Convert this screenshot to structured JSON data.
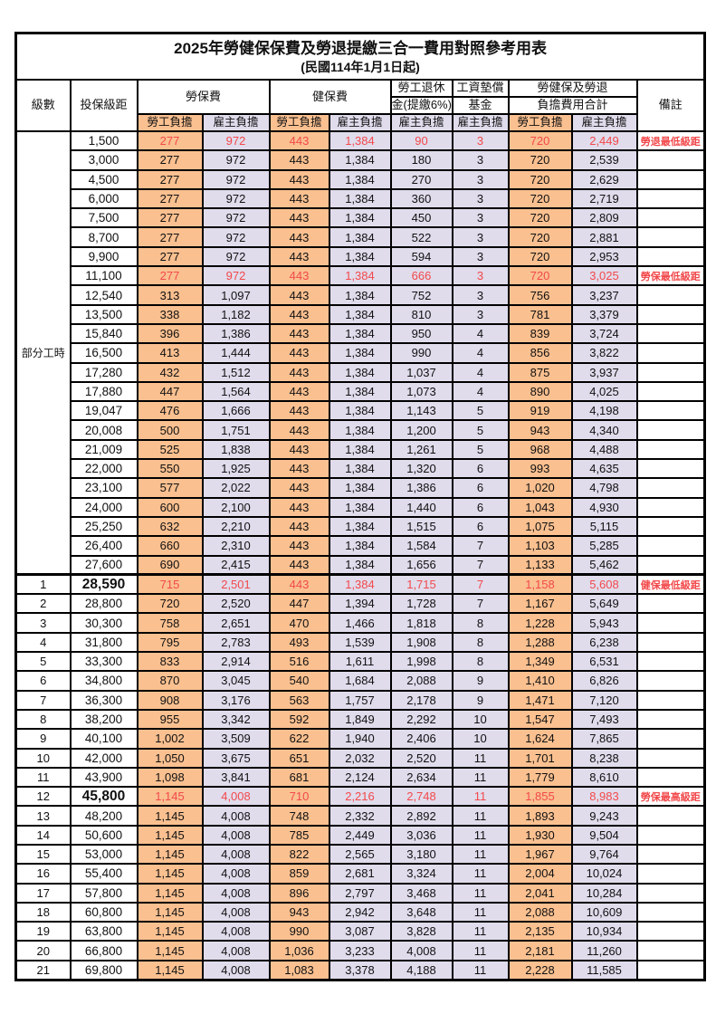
{
  "title": "2025年勞健保保費及勞退提繳三合一費用對照參考用表",
  "subtitle": "(民國114年1月1日起)",
  "colors": {
    "employee_bg": "#FAC090",
    "employer_bg": "#E0DCEC",
    "highlight": "#F2494B"
  },
  "header": {
    "level": "級數",
    "bracket": "投保級距",
    "labor_insurance": "勞保費",
    "health_insurance": "健保費",
    "pension_line1": "勞工退休",
    "pension_line2": "金(提繳6%)",
    "wage_fund_line1": "工資墊償",
    "wage_fund_line2": "基金",
    "total_line1": "勞健保及勞退",
    "total_line2": "負擔費用合計",
    "remark": "備註",
    "employee": "勞工負擔",
    "employer": "雇主負擔"
  },
  "part_time_label": "部分工時",
  "part_time_rowspan": 23,
  "columns": [
    {
      "key": "li_emp",
      "cls": "emp"
    },
    {
      "key": "li_er",
      "cls": "er"
    },
    {
      "key": "hi_emp",
      "cls": "emp"
    },
    {
      "key": "hi_er",
      "cls": "er"
    },
    {
      "key": "pension",
      "cls": "er"
    },
    {
      "key": "fund",
      "cls": "er"
    },
    {
      "key": "tot_emp",
      "cls": "emp"
    },
    {
      "key": "tot_er",
      "cls": "er"
    }
  ],
  "rows": [
    {
      "level": null,
      "bracket": "1,500",
      "li_emp": "277",
      "li_er": "972",
      "hi_emp": "443",
      "hi_er": "1,384",
      "pension": "90",
      "fund": "3",
      "tot_emp": "720",
      "tot_er": "2,449",
      "remark": "勞退最低級距",
      "hl": true
    },
    {
      "level": null,
      "bracket": "3,000",
      "li_emp": "277",
      "li_er": "972",
      "hi_emp": "443",
      "hi_er": "1,384",
      "pension": "180",
      "fund": "3",
      "tot_emp": "720",
      "tot_er": "2,539",
      "remark": ""
    },
    {
      "level": null,
      "bracket": "4,500",
      "li_emp": "277",
      "li_er": "972",
      "hi_emp": "443",
      "hi_er": "1,384",
      "pension": "270",
      "fund": "3",
      "tot_emp": "720",
      "tot_er": "2,629",
      "remark": ""
    },
    {
      "level": null,
      "bracket": "6,000",
      "li_emp": "277",
      "li_er": "972",
      "hi_emp": "443",
      "hi_er": "1,384",
      "pension": "360",
      "fund": "3",
      "tot_emp": "720",
      "tot_er": "2,719",
      "remark": ""
    },
    {
      "level": null,
      "bracket": "7,500",
      "li_emp": "277",
      "li_er": "972",
      "hi_emp": "443",
      "hi_er": "1,384",
      "pension": "450",
      "fund": "3",
      "tot_emp": "720",
      "tot_er": "2,809",
      "remark": ""
    },
    {
      "level": null,
      "bracket": "8,700",
      "li_emp": "277",
      "li_er": "972",
      "hi_emp": "443",
      "hi_er": "1,384",
      "pension": "522",
      "fund": "3",
      "tot_emp": "720",
      "tot_er": "2,881",
      "remark": ""
    },
    {
      "level": null,
      "bracket": "9,900",
      "li_emp": "277",
      "li_er": "972",
      "hi_emp": "443",
      "hi_er": "1,384",
      "pension": "594",
      "fund": "3",
      "tot_emp": "720",
      "tot_er": "2,953",
      "remark": ""
    },
    {
      "level": null,
      "bracket": "11,100",
      "li_emp": "277",
      "li_er": "972",
      "hi_emp": "443",
      "hi_er": "1,384",
      "pension": "666",
      "fund": "3",
      "tot_emp": "720",
      "tot_er": "3,025",
      "remark": "勞保最低級距",
      "hl": true
    },
    {
      "level": null,
      "bracket": "12,540",
      "li_emp": "313",
      "li_er": "1,097",
      "hi_emp": "443",
      "hi_er": "1,384",
      "pension": "752",
      "fund": "3",
      "tot_emp": "756",
      "tot_er": "3,237",
      "remark": ""
    },
    {
      "level": null,
      "bracket": "13,500",
      "li_emp": "338",
      "li_er": "1,182",
      "hi_emp": "443",
      "hi_er": "1,384",
      "pension": "810",
      "fund": "3",
      "tot_emp": "781",
      "tot_er": "3,379",
      "remark": ""
    },
    {
      "level": null,
      "bracket": "15,840",
      "li_emp": "396",
      "li_er": "1,386",
      "hi_emp": "443",
      "hi_er": "1,384",
      "pension": "950",
      "fund": "4",
      "tot_emp": "839",
      "tot_er": "3,724",
      "remark": ""
    },
    {
      "level": null,
      "bracket": "16,500",
      "li_emp": "413",
      "li_er": "1,444",
      "hi_emp": "443",
      "hi_er": "1,384",
      "pension": "990",
      "fund": "4",
      "tot_emp": "856",
      "tot_er": "3,822",
      "remark": ""
    },
    {
      "level": null,
      "bracket": "17,280",
      "li_emp": "432",
      "li_er": "1,512",
      "hi_emp": "443",
      "hi_er": "1,384",
      "pension": "1,037",
      "fund": "4",
      "tot_emp": "875",
      "tot_er": "3,937",
      "remark": ""
    },
    {
      "level": null,
      "bracket": "17,880",
      "li_emp": "447",
      "li_er": "1,564",
      "hi_emp": "443",
      "hi_er": "1,384",
      "pension": "1,073",
      "fund": "4",
      "tot_emp": "890",
      "tot_er": "4,025",
      "remark": ""
    },
    {
      "level": null,
      "bracket": "19,047",
      "li_emp": "476",
      "li_er": "1,666",
      "hi_emp": "443",
      "hi_er": "1,384",
      "pension": "1,143",
      "fund": "5",
      "tot_emp": "919",
      "tot_er": "4,198",
      "remark": ""
    },
    {
      "level": null,
      "bracket": "20,008",
      "li_emp": "500",
      "li_er": "1,751",
      "hi_emp": "443",
      "hi_er": "1,384",
      "pension": "1,200",
      "fund": "5",
      "tot_emp": "943",
      "tot_er": "4,340",
      "remark": ""
    },
    {
      "level": null,
      "bracket": "21,009",
      "li_emp": "525",
      "li_er": "1,838",
      "hi_emp": "443",
      "hi_er": "1,384",
      "pension": "1,261",
      "fund": "5",
      "tot_emp": "968",
      "tot_er": "4,488",
      "remark": ""
    },
    {
      "level": null,
      "bracket": "22,000",
      "li_emp": "550",
      "li_er": "1,925",
      "hi_emp": "443",
      "hi_er": "1,384",
      "pension": "1,320",
      "fund": "6",
      "tot_emp": "993",
      "tot_er": "4,635",
      "remark": ""
    },
    {
      "level": null,
      "bracket": "23,100",
      "li_emp": "577",
      "li_er": "2,022",
      "hi_emp": "443",
      "hi_er": "1,384",
      "pension": "1,386",
      "fund": "6",
      "tot_emp": "1,020",
      "tot_er": "4,798",
      "remark": ""
    },
    {
      "level": null,
      "bracket": "24,000",
      "li_emp": "600",
      "li_er": "2,100",
      "hi_emp": "443",
      "hi_er": "1,384",
      "pension": "1,440",
      "fund": "6",
      "tot_emp": "1,043",
      "tot_er": "4,930",
      "remark": ""
    },
    {
      "level": null,
      "bracket": "25,250",
      "li_emp": "632",
      "li_er": "2,210",
      "hi_emp": "443",
      "hi_er": "1,384",
      "pension": "1,515",
      "fund": "6",
      "tot_emp": "1,075",
      "tot_er": "5,115",
      "remark": ""
    },
    {
      "level": null,
      "bracket": "26,400",
      "li_emp": "660",
      "li_er": "2,310",
      "hi_emp": "443",
      "hi_er": "1,384",
      "pension": "1,584",
      "fund": "7",
      "tot_emp": "1,103",
      "tot_er": "5,285",
      "remark": ""
    },
    {
      "level": null,
      "bracket": "27,600",
      "li_emp": "690",
      "li_er": "2,415",
      "hi_emp": "443",
      "hi_er": "1,384",
      "pension": "1,656",
      "fund": "7",
      "tot_emp": "1,133",
      "tot_er": "5,462",
      "remark": ""
    },
    {
      "level": "1",
      "bracket": "28,590",
      "li_emp": "715",
      "li_er": "2,501",
      "hi_emp": "443",
      "hi_er": "1,384",
      "pension": "1,715",
      "fund": "7",
      "tot_emp": "1,158",
      "tot_er": "5,608",
      "remark": "健保最低級距",
      "hl": true,
      "big": true,
      "thick": true
    },
    {
      "level": "2",
      "bracket": "28,800",
      "li_emp": "720",
      "li_er": "2,520",
      "hi_emp": "447",
      "hi_er": "1,394",
      "pension": "1,728",
      "fund": "7",
      "tot_emp": "1,167",
      "tot_er": "5,649",
      "remark": ""
    },
    {
      "level": "3",
      "bracket": "30,300",
      "li_emp": "758",
      "li_er": "2,651",
      "hi_emp": "470",
      "hi_er": "1,466",
      "pension": "1,818",
      "fund": "8",
      "tot_emp": "1,228",
      "tot_er": "5,943",
      "remark": ""
    },
    {
      "level": "4",
      "bracket": "31,800",
      "li_emp": "795",
      "li_er": "2,783",
      "hi_emp": "493",
      "hi_er": "1,539",
      "pension": "1,908",
      "fund": "8",
      "tot_emp": "1,288",
      "tot_er": "6,238",
      "remark": ""
    },
    {
      "level": "5",
      "bracket": "33,300",
      "li_emp": "833",
      "li_er": "2,914",
      "hi_emp": "516",
      "hi_er": "1,611",
      "pension": "1,998",
      "fund": "8",
      "tot_emp": "1,349",
      "tot_er": "6,531",
      "remark": ""
    },
    {
      "level": "6",
      "bracket": "34,800",
      "li_emp": "870",
      "li_er": "3,045",
      "hi_emp": "540",
      "hi_er": "1,684",
      "pension": "2,088",
      "fund": "9",
      "tot_emp": "1,410",
      "tot_er": "6,826",
      "remark": ""
    },
    {
      "level": "7",
      "bracket": "36,300",
      "li_emp": "908",
      "li_er": "3,176",
      "hi_emp": "563",
      "hi_er": "1,757",
      "pension": "2,178",
      "fund": "9",
      "tot_emp": "1,471",
      "tot_er": "7,120",
      "remark": ""
    },
    {
      "level": "8",
      "bracket": "38,200",
      "li_emp": "955",
      "li_er": "3,342",
      "hi_emp": "592",
      "hi_er": "1,849",
      "pension": "2,292",
      "fund": "10",
      "tot_emp": "1,547",
      "tot_er": "7,493",
      "remark": ""
    },
    {
      "level": "9",
      "bracket": "40,100",
      "li_emp": "1,002",
      "li_er": "3,509",
      "hi_emp": "622",
      "hi_er": "1,940",
      "pension": "2,406",
      "fund": "10",
      "tot_emp": "1,624",
      "tot_er": "7,865",
      "remark": ""
    },
    {
      "level": "10",
      "bracket": "42,000",
      "li_emp": "1,050",
      "li_er": "3,675",
      "hi_emp": "651",
      "hi_er": "2,032",
      "pension": "2,520",
      "fund": "11",
      "tot_emp": "1,701",
      "tot_er": "8,238",
      "remark": ""
    },
    {
      "level": "11",
      "bracket": "43,900",
      "li_emp": "1,098",
      "li_er": "3,841",
      "hi_emp": "681",
      "hi_er": "2,124",
      "pension": "2,634",
      "fund": "11",
      "tot_emp": "1,779",
      "tot_er": "8,610",
      "remark": ""
    },
    {
      "level": "12",
      "bracket": "45,800",
      "li_emp": "1,145",
      "li_er": "4,008",
      "hi_emp": "710",
      "hi_er": "2,216",
      "pension": "2,748",
      "fund": "11",
      "tot_emp": "1,855",
      "tot_er": "8,983",
      "remark": "勞保最高級距",
      "hl": true,
      "big": true
    },
    {
      "level": "13",
      "bracket": "48,200",
      "li_emp": "1,145",
      "li_er": "4,008",
      "hi_emp": "748",
      "hi_er": "2,332",
      "pension": "2,892",
      "fund": "11",
      "tot_emp": "1,893",
      "tot_er": "9,243",
      "remark": ""
    },
    {
      "level": "14",
      "bracket": "50,600",
      "li_emp": "1,145",
      "li_er": "4,008",
      "hi_emp": "785",
      "hi_er": "2,449",
      "pension": "3,036",
      "fund": "11",
      "tot_emp": "1,930",
      "tot_er": "9,504",
      "remark": ""
    },
    {
      "level": "15",
      "bracket": "53,000",
      "li_emp": "1,145",
      "li_er": "4,008",
      "hi_emp": "822",
      "hi_er": "2,565",
      "pension": "3,180",
      "fund": "11",
      "tot_emp": "1,967",
      "tot_er": "9,764",
      "remark": ""
    },
    {
      "level": "16",
      "bracket": "55,400",
      "li_emp": "1,145",
      "li_er": "4,008",
      "hi_emp": "859",
      "hi_er": "2,681",
      "pension": "3,324",
      "fund": "11",
      "tot_emp": "2,004",
      "tot_er": "10,024",
      "remark": ""
    },
    {
      "level": "17",
      "bracket": "57,800",
      "li_emp": "1,145",
      "li_er": "4,008",
      "hi_emp": "896",
      "hi_er": "2,797",
      "pension": "3,468",
      "fund": "11",
      "tot_emp": "2,041",
      "tot_er": "10,284",
      "remark": ""
    },
    {
      "level": "18",
      "bracket": "60,800",
      "li_emp": "1,145",
      "li_er": "4,008",
      "hi_emp": "943",
      "hi_er": "2,942",
      "pension": "3,648",
      "fund": "11",
      "tot_emp": "2,088",
      "tot_er": "10,609",
      "remark": ""
    },
    {
      "level": "19",
      "bracket": "63,800",
      "li_emp": "1,145",
      "li_er": "4,008",
      "hi_emp": "990",
      "hi_er": "3,087",
      "pension": "3,828",
      "fund": "11",
      "tot_emp": "2,135",
      "tot_er": "10,934",
      "remark": ""
    },
    {
      "level": "20",
      "bracket": "66,800",
      "li_emp": "1,145",
      "li_er": "4,008",
      "hi_emp": "1,036",
      "hi_er": "3,233",
      "pension": "4,008",
      "fund": "11",
      "tot_emp": "2,181",
      "tot_er": "11,260",
      "remark": ""
    },
    {
      "level": "21",
      "bracket": "69,800",
      "li_emp": "1,145",
      "li_er": "4,008",
      "hi_emp": "1,083",
      "hi_er": "3,378",
      "pension": "4,188",
      "fund": "11",
      "tot_emp": "2,228",
      "tot_er": "11,585",
      "remark": ""
    }
  ]
}
